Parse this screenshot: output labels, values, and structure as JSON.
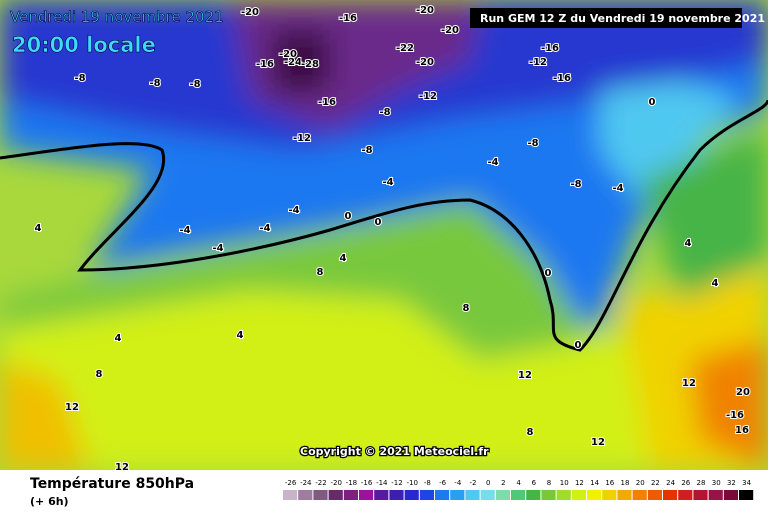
{
  "header": {
    "date": "Vendredi 19 novembre 2021",
    "time": "20:00 locale",
    "run": "Run GEM 12 Z du Vendredi 19 novembre 2021"
  },
  "copyright": "Copyright © 2021 Meteociel.fr",
  "footer": {
    "title": "Température 850hPa",
    "lead": "(+ 6h)"
  },
  "scale": {
    "ticks": [
      -26,
      -24,
      -22,
      -20,
      -18,
      -16,
      -14,
      -12,
      -10,
      -8,
      -6,
      -4,
      -2,
      0,
      2,
      4,
      6,
      8,
      10,
      12,
      14,
      16,
      18,
      20,
      22,
      24,
      26,
      28,
      30,
      32,
      34
    ],
    "colors": [
      "#c8b4c8",
      "#a07ca0",
      "#805a80",
      "#6a2a6a",
      "#7f1f7f",
      "#99139b",
      "#5a1aa0",
      "#3c1eb4",
      "#2828d2",
      "#1e46e6",
      "#1e78f0",
      "#28a0f0",
      "#50c8f0",
      "#78dcf0",
      "#7ddcaa",
      "#50c878",
      "#46b446",
      "#78c83c",
      "#a0dc28",
      "#d2f014",
      "#f0f000",
      "#f0d200",
      "#f0aa00",
      "#f08200",
      "#f05a00",
      "#e63200",
      "#d21e1e",
      "#b41432",
      "#961446",
      "#780a3c",
      "#000000"
    ]
  },
  "map_labels": [
    -20,
    -20,
    -20,
    -16,
    -20,
    -24,
    -28,
    -16,
    -22,
    -20,
    -16,
    -12,
    -16,
    -12,
    -16,
    -12,
    -8,
    -8,
    -8,
    -8,
    -8,
    -4,
    -4,
    -8,
    -8,
    0,
    -4,
    -4,
    -4,
    0,
    0,
    -4,
    -4,
    4,
    4,
    8,
    12,
    12,
    8,
    4,
    8,
    4,
    12,
    20,
    -16,
    16,
    8,
    12,
    0,
    0,
    4,
    4,
    12
  ]
}
